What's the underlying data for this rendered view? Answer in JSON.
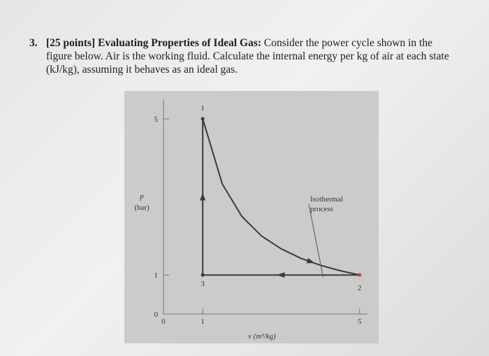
{
  "question": {
    "number": "3.",
    "points": "[25 points]",
    "heading": "Evaluating Properties of Ideal Gas:",
    "body": "Consider the power cycle shown in the figure below. Air is the working fluid. Calculate the internal energy per kg of air at each state (kJ/kg), assuming it behaves as an ideal gas."
  },
  "chart_data": {
    "type": "line",
    "x_label": "v (m³/kg)",
    "y_label": "p",
    "y_unit": "(bar)",
    "x": [
      1,
      1.5,
      2,
      2.5,
      3,
      3.5,
      4,
      4.5,
      5,
      1,
      1
    ],
    "values": [
      5,
      3.33,
      2.5,
      2,
      1.67,
      1.43,
      1.25,
      1.11,
      1,
      1,
      5
    ],
    "color": "#3a3a3a",
    "points": [
      {
        "label": "1",
        "x": 1,
        "y": 5
      },
      {
        "label": "2",
        "x": 5,
        "y": 1
      },
      {
        "label": "3",
        "x": 1,
        "y": 1
      }
    ],
    "annotation": [
      "Isothermal",
      "process"
    ],
    "xlim": [
      0,
      5.2
    ],
    "ylim": [
      0,
      5.5
    ],
    "xticks": [
      0,
      1,
      5
    ],
    "yticks": [
      0,
      1,
      5
    ]
  }
}
